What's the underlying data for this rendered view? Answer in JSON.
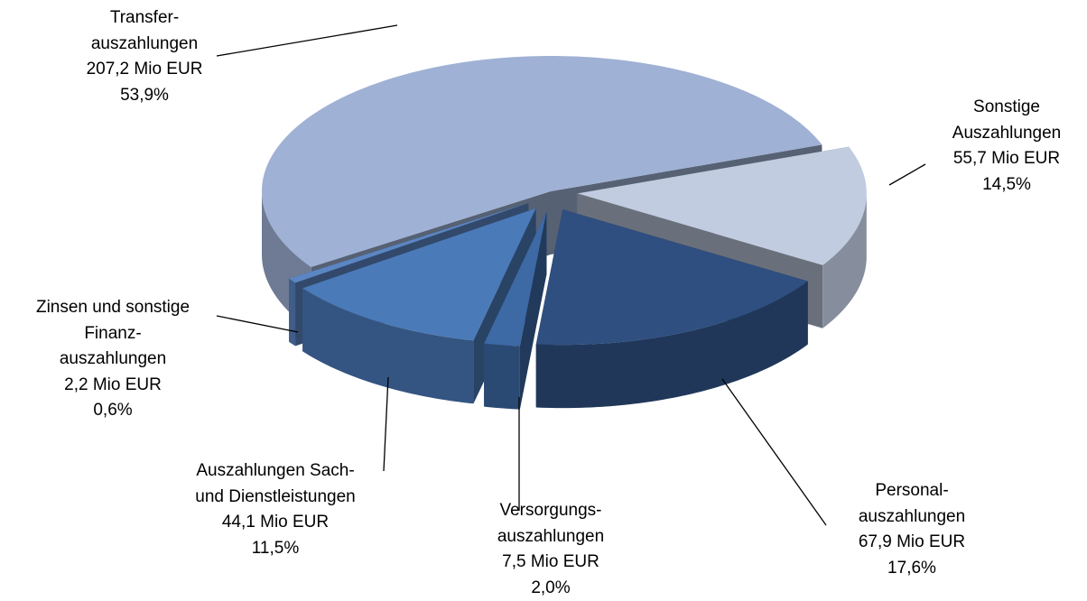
{
  "chart_data": {
    "type": "pie",
    "categories": [
      "Transfer-\nauszahlungen",
      "Sonstige\nAuszahlungen",
      "Personal-\nauszahlungen",
      "Versorgungs-\nauszahlungen",
      "Auszahlungen Sach-\nund Dienstleistungen",
      "Zinsen und sonstige\nFinanz-\nauszahlungen"
    ],
    "values": [
      53.9,
      14.5,
      17.6,
      2.0,
      11.5,
      0.6
    ],
    "value_labels": [
      "53,9%",
      "14,5%",
      "17,6%",
      "2,0%",
      "11,5%",
      "0,6%"
    ],
    "amounts": [
      207.2,
      55.7,
      67.9,
      7.5,
      44.1,
      2.2
    ],
    "amount_labels": [
      "207,2 Mio EUR",
      "55,7 Mio EUR",
      "67,9 Mio EUR",
      "7,5 Mio EUR",
      "44,1 Mio EUR",
      "2,2 Mio EUR"
    ],
    "colors": [
      "#9fb1d4",
      "#c1cce1",
      "#2f4f80",
      "#3d69a5",
      "#4b7ab9",
      "#5b86c3"
    ]
  }
}
